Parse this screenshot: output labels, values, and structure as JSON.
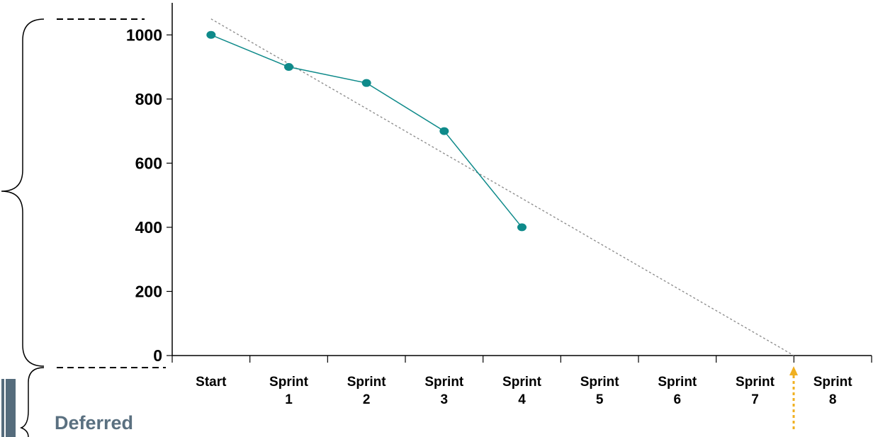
{
  "chart_data": {
    "type": "line",
    "categories": [
      "Start",
      "Sprint 1",
      "Sprint 2",
      "Sprint 3",
      "Sprint 4",
      "Sprint 5",
      "Sprint 6",
      "Sprint 7",
      "Sprint 8"
    ],
    "series": [
      {
        "color": "#0e8a8a",
        "values": [
          1000,
          900,
          850,
          700,
          400,
          null,
          null,
          null,
          null
        ]
      }
    ],
    "trend_line": {
      "x": [
        0,
        7.5
      ],
      "values": [
        1050,
        0
      ],
      "color": "#888888"
    },
    "ylim": [
      0,
      1100
    ],
    "yticks": [
      0,
      200,
      400,
      600,
      800,
      1000
    ],
    "grid": false,
    "annotation": "Deferred"
  }
}
